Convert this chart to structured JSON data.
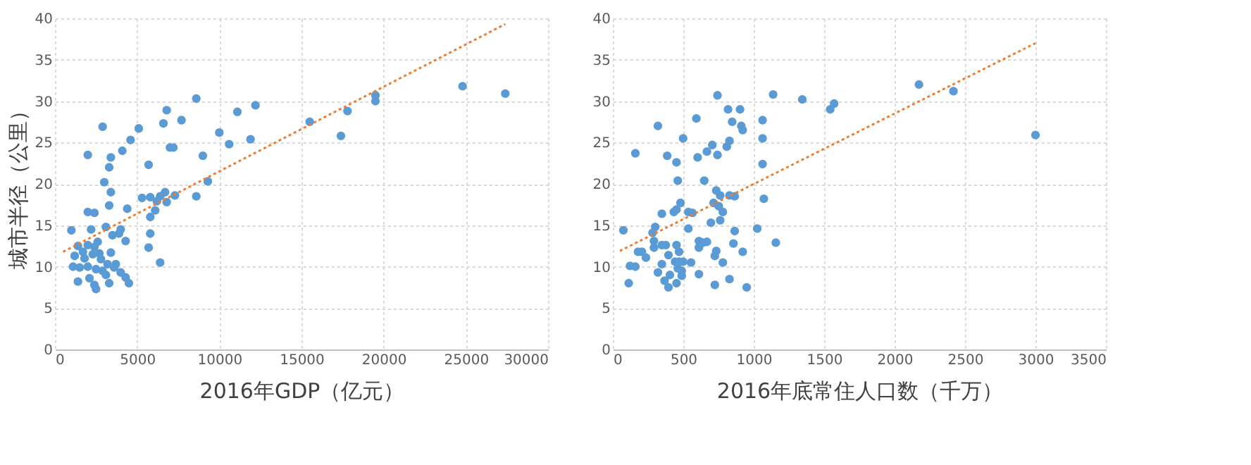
{
  "chart_data": [
    {
      "type": "scatter",
      "xlabel": "2016年GDP（亿元）",
      "ylabel": "城市半径（公里）",
      "xlim": [
        0,
        30000
      ],
      "xticks": [
        {
          "value": 0,
          "label": "0"
        },
        {
          "value": 5000,
          "label": "5000"
        },
        {
          "value": 10000,
          "label": "10000"
        },
        {
          "value": 15000,
          "label": "15000"
        },
        {
          "value": 20000,
          "label": "20000"
        },
        {
          "value": 25000,
          "label": "25000"
        },
        {
          "value": 30000,
          "label": "30000"
        }
      ],
      "ylim": [
        0,
        40
      ],
      "yticks": [
        0,
        5,
        10,
        15,
        20,
        25,
        30,
        35,
        40
      ],
      "grid": true,
      "series": [
        {
          "marker": "circle",
          "color": "#5b9bd5",
          "x": [
            24800,
            27400,
            19500,
            19500,
            17800,
            17400,
            15500,
            12200,
            11100,
            11900,
            10000,
            10600,
            8600,
            7700,
            6800,
            6600,
            7000,
            7200,
            9000,
            9300,
            8600,
            7300,
            5100,
            4600,
            2900,
            2000,
            4100,
            3400,
            3300,
            5700,
            3400,
            3000,
            6700,
            6400,
            6200,
            5800,
            5300,
            6800,
            6100,
            5800,
            5800,
            5700,
            6400,
            4400,
            3300,
            2000,
            2400,
            3100,
            1000,
            3500,
            4000,
            3900,
            4300,
            2200,
            2600,
            1400,
            1700,
            2000,
            2400,
            2700,
            3400,
            1200,
            1800,
            2300,
            2800,
            3200,
            2000,
            1100,
            1500,
            2500,
            2900,
            3700,
            1400,
            2100,
            2400,
            3300,
            4300,
            4500,
            3100,
            2500,
            4000,
            3600
          ],
          "values": [
            31.8,
            30.9,
            30.7,
            30.0,
            28.8,
            25.8,
            27.5,
            29.5,
            28.7,
            25.4,
            26.2,
            24.8,
            30.3,
            27.7,
            28.9,
            27.3,
            24.4,
            24.4,
            23.4,
            20.3,
            18.5,
            18.6,
            26.7,
            25.3,
            26.9,
            23.5,
            24.0,
            23.2,
            22.0,
            22.3,
            19.0,
            20.2,
            19.0,
            18.5,
            17.9,
            18.4,
            18.3,
            17.8,
            16.8,
            16.0,
            14.0,
            12.3,
            10.5,
            17.0,
            17.4,
            16.6,
            16.5,
            14.8,
            14.4,
            13.8,
            14.5,
            14.0,
            13.1,
            14.5,
            13.0,
            12.5,
            11.8,
            12.6,
            12.4,
            11.6,
            11.7,
            11.3,
            11.0,
            11.5,
            10.9,
            10.3,
            10.0,
            10.0,
            9.9,
            9.7,
            9.5,
            10.3,
            8.2,
            8.6,
            7.8,
            8.0,
            8.7,
            8.0,
            9.0,
            7.3,
            9.3,
            9.9
          ]
        },
        {
          "type": "line",
          "line_style": "dotted",
          "color": "#ed7d31",
          "x": [
            500,
            27400
          ],
          "values": [
            11.8,
            39.3
          ]
        }
      ]
    },
    {
      "type": "scatter",
      "xlabel": "2016年底常住人口数（千万）",
      "xlim": [
        0,
        3500
      ],
      "xticks": [
        {
          "value": 0,
          "label": "0"
        },
        500,
        {
          "value": 1000,
          "label": "1000"
        },
        {
          "value": 1500,
          "label": "1500"
        },
        {
          "value": 2000,
          "label": "2000"
        },
        {
          "value": 2500,
          "label": "2500"
        },
        {
          "value": 3000,
          "label": "3000"
        },
        {
          "value": 3500,
          "label": "3500"
        }
      ],
      "ylim": [
        0,
        40
      ],
      "yticks": [
        0,
        5,
        10,
        15,
        20,
        25,
        30,
        35,
        40
      ],
      "grid": true,
      "series": [
        {
          "marker": "circle",
          "color": "#5b9bd5",
          "x": [
            75,
            160,
            113,
            122,
            160,
            179,
            207,
            235,
            282,
            301,
            292,
            320,
            386,
            348,
            348,
            376,
            292,
            320,
            348,
            367,
            395,
            405,
            395,
            452,
            452,
            461,
            499,
            480,
            452,
            433,
            452,
            470,
            442,
            470,
            499,
            461,
            489,
            489,
            536,
            536,
            565,
            593,
            602,
            611,
            555,
            611,
            640,
            668,
            611,
            649,
            668,
            706,
            743,
            696,
            734,
            762,
            762,
            715,
            752,
            781,
            724,
            734,
            781,
            724,
            743,
            809,
            828,
            818,
            847,
            903,
            912,
            922,
            828,
            865,
            865,
            856,
            828,
            950,
            922,
            1063,
            1063,
            1063,
            1072,
            1025,
            1157,
            1138,
            1345,
            1543,
            1571,
            2173,
            2418,
            3000
          ],
          "values": [
            14.4,
            23.7,
            8.0,
            10.1,
            10.0,
            11.8,
            11.8,
            11.1,
            14.1,
            14.8,
            13.1,
            27.0,
            23.4,
            16.4,
            12.6,
            12.6,
            12.3,
            9.3,
            10.3,
            8.3,
            7.5,
            9.0,
            11.4,
            8.0,
            22.6,
            20.4,
            25.5,
            17.7,
            16.9,
            16.6,
            12.6,
            11.8,
            10.6,
            10.6,
            10.6,
            9.8,
            9.5,
            8.9,
            14.6,
            16.6,
            16.5,
            27.9,
            23.2,
            9.1,
            10.5,
            13.1,
            12.9,
            13.0,
            12.3,
            20.4,
            23.9,
            24.7,
            23.5,
            15.3,
            19.2,
            18.6,
            15.6,
            17.7,
            17.3,
            16.6,
            11.3,
            11.9,
            10.5,
            7.8,
            30.7,
            24.5,
            25.2,
            29.0,
            27.5,
            29.0,
            27.0,
            26.5,
            18.6,
            18.5,
            14.3,
            12.8,
            8.5,
            7.5,
            11.8,
            27.7,
            25.5,
            22.4,
            18.2,
            14.6,
            12.9,
            30.8,
            30.2,
            29.0,
            29.7,
            32.0,
            31.2,
            25.9
          ]
        },
        {
          "type": "line",
          "line_style": "dotted",
          "color": "#ed7d31",
          "x": [
            50,
            3000
          ],
          "values": [
            11.9,
            37.0
          ]
        }
      ]
    }
  ]
}
